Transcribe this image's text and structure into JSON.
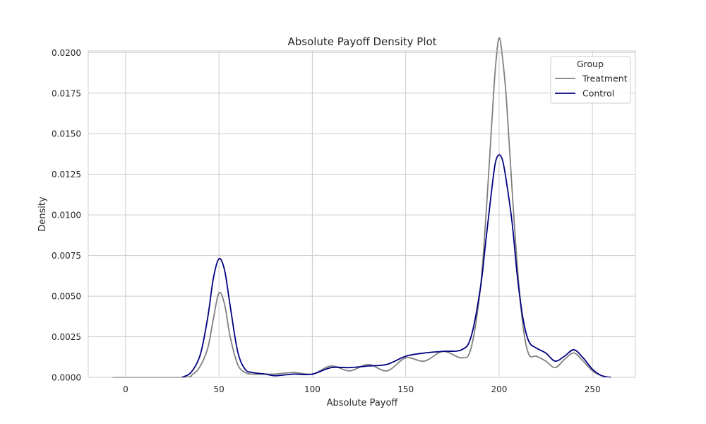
{
  "chart_data": {
    "type": "line",
    "title": "Absolute Payoff Density Plot",
    "xlabel": "Absolute Payoff",
    "ylabel": "Density",
    "xlim": [
      -20,
      273
    ],
    "ylim": [
      0,
      0.0201
    ],
    "x_ticks": [
      0,
      50,
      100,
      150,
      200,
      250
    ],
    "x_tick_labels": [
      "0",
      "50",
      "100",
      "150",
      "200",
      "250"
    ],
    "y_ticks": [
      0,
      0.0025,
      0.005,
      0.0075,
      0.01,
      0.0125,
      0.015,
      0.0175,
      0.02
    ],
    "y_tick_labels": [
      "0.0000",
      "0.0025",
      "0.0050",
      "0.0075",
      "0.0100",
      "0.0125",
      "0.0150",
      "0.0175",
      "0.0200"
    ],
    "grid": true,
    "legend": {
      "title": "Group",
      "position": "top-right"
    },
    "series": [
      {
        "name": "Treatment",
        "color": "#808080",
        "x": [
          -7,
          30,
          36,
          40,
          44,
          47,
          50,
          53,
          56,
          60,
          64,
          68,
          75,
          80,
          90,
          100,
          110,
          120,
          130,
          140,
          150,
          160,
          170,
          180,
          185,
          190,
          193,
          196,
          198,
          200,
          202,
          204,
          207,
          210,
          213,
          216,
          220,
          225,
          230,
          235,
          240,
          245,
          250,
          255,
          260
        ],
        "y": [
          0,
          0,
          0.0002,
          0.0007,
          0.0018,
          0.0036,
          0.0052,
          0.0045,
          0.0025,
          0.0008,
          0.0003,
          0.0002,
          0.0002,
          0.0002,
          0.0003,
          0.0002,
          0.0007,
          0.0004,
          0.0008,
          0.0004,
          0.0012,
          0.001,
          0.0016,
          0.0012,
          0.0018,
          0.0055,
          0.01,
          0.0155,
          0.019,
          0.0209,
          0.0195,
          0.017,
          0.0115,
          0.0065,
          0.003,
          0.0014,
          0.0013,
          0.001,
          0.0006,
          0.0011,
          0.0015,
          0.001,
          0.0004,
          0.0001,
          0
        ],
        "values": [
          0,
          0,
          0.0002,
          0.0007,
          0.0018,
          0.0036,
          0.0052,
          0.0045,
          0.0025,
          0.0008,
          0.0003,
          0.0002,
          0.0002,
          0.0002,
          0.0003,
          0.0002,
          0.0007,
          0.0004,
          0.0008,
          0.0004,
          0.0012,
          0.001,
          0.0016,
          0.0012,
          0.0018,
          0.0055,
          0.01,
          0.0155,
          0.019,
          0.0209,
          0.0195,
          0.017,
          0.0115,
          0.0065,
          0.003,
          0.0014,
          0.0013,
          0.001,
          0.0006,
          0.0011,
          0.0015,
          0.001,
          0.0004,
          0.0001,
          0
        ]
      },
      {
        "name": "Control",
        "color": "#000080",
        "x": [
          30,
          35,
          40,
          44,
          47,
          50,
          53,
          56,
          60,
          64,
          68,
          75,
          80,
          90,
          100,
          110,
          120,
          130,
          140,
          150,
          160,
          170,
          180,
          185,
          190,
          193,
          196,
          198,
          200,
          202,
          204,
          207,
          210,
          213,
          216,
          220,
          225,
          230,
          235,
          240,
          245,
          250,
          255,
          260
        ],
        "y": [
          0,
          0.0003,
          0.0014,
          0.0037,
          0.0061,
          0.0073,
          0.0066,
          0.0044,
          0.0016,
          0.0005,
          0.0003,
          0.0002,
          0.0001,
          0.0002,
          0.0002,
          0.0006,
          0.0006,
          0.0007,
          0.0008,
          0.0013,
          0.0015,
          0.0016,
          0.0017,
          0.0025,
          0.0055,
          0.0085,
          0.0115,
          0.0132,
          0.0137,
          0.0133,
          0.012,
          0.0095,
          0.006,
          0.0035,
          0.0022,
          0.0018,
          0.0015,
          0.001,
          0.0013,
          0.0017,
          0.0012,
          0.0005,
          0.0001,
          0
        ],
        "values": [
          0,
          0.0003,
          0.0014,
          0.0037,
          0.0061,
          0.0073,
          0.0066,
          0.0044,
          0.0016,
          0.0005,
          0.0003,
          0.0002,
          0.0001,
          0.0002,
          0.0002,
          0.0006,
          0.0006,
          0.0007,
          0.0008,
          0.0013,
          0.0015,
          0.0016,
          0.0017,
          0.0025,
          0.0055,
          0.0085,
          0.0115,
          0.0132,
          0.0137,
          0.0133,
          0.012,
          0.0095,
          0.006,
          0.0035,
          0.0022,
          0.0018,
          0.0015,
          0.001,
          0.0013,
          0.0017,
          0.0012,
          0.0005,
          0.0001,
          0
        ]
      }
    ]
  }
}
